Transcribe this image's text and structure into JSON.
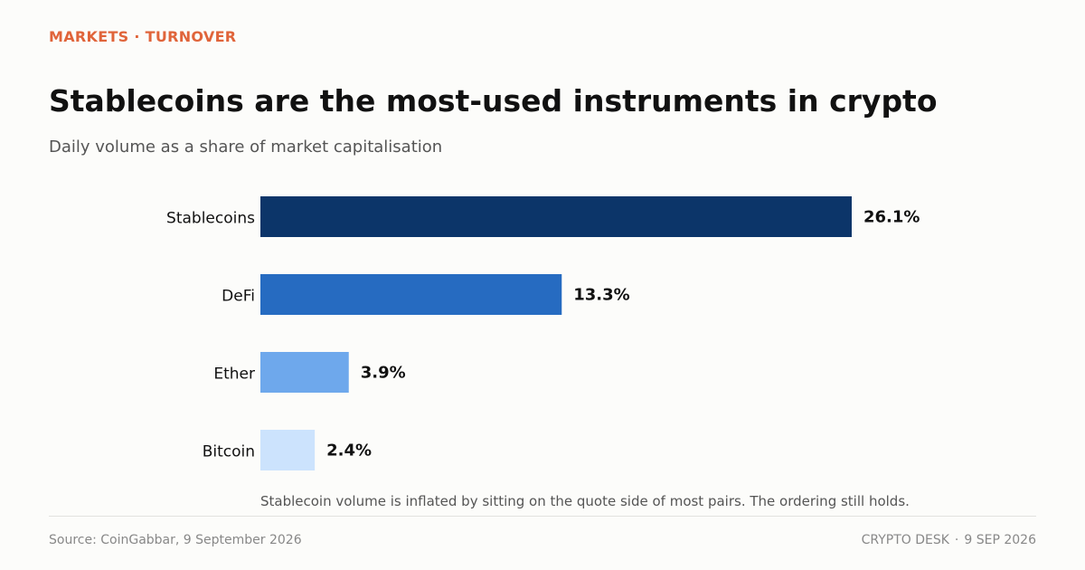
{
  "header": {
    "kicker": "MARKETS · TURNOVER",
    "title": "Stablecoins are the most-used instruments in crypto",
    "subtitle": "Daily volume as a share of market capitalisation"
  },
  "chart_data": {
    "type": "bar",
    "orientation": "horizontal",
    "categories": [
      "Stablecoins",
      "DeFi",
      "Ether",
      "Bitcoin"
    ],
    "values": [
      26.1,
      13.3,
      3.9,
      2.4
    ],
    "value_labels": [
      "26.1%",
      "13.3%",
      "3.9%",
      "2.4%"
    ],
    "unit": "%",
    "title": "Stablecoins are the most-used instruments in crypto",
    "subtitle": "Daily volume as a share of market capitalisation",
    "xlabel": "",
    "ylabel": "",
    "xlim": [
      0,
      26.1
    ],
    "grid": false,
    "legend": "none",
    "annotation": "Stablecoin volume is inflated by sitting on the quote side of most pairs. The ordering still holds.",
    "bar_colors": [
      "#0c3569",
      "#266bc1",
      "#6ea8ec",
      "#cce3fd"
    ]
  },
  "footer": {
    "source": "Source: CoinGabbar, 9 September 2026",
    "brand": "CRYPTO DESK",
    "separator": "·",
    "date": "9 SEP 2026"
  },
  "colors": {
    "accent": "#e0643a",
    "text": "#111111",
    "muted": "#555555"
  }
}
